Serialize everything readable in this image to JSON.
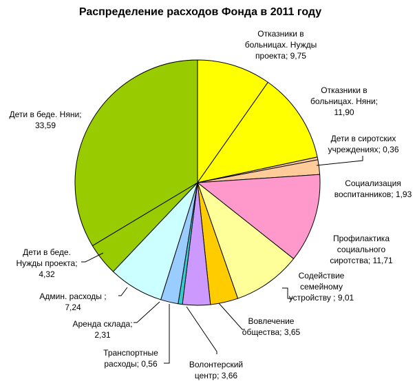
{
  "chart_data": {
    "type": "pie",
    "title": "Распределение расходов Фонда в 2011 году",
    "start_angle_deg": 90,
    "direction": "clockwise",
    "slices": [
      {
        "label_lines": [
          "Отказники в",
          "больницах. Нужды",
          "проекта; 9,75"
        ],
        "value": 9.75,
        "color": "#FFFF00"
      },
      {
        "label_lines": [
          "Отказники в",
          "больницах. Няни;",
          "11,90"
        ],
        "value": 11.9,
        "color": "#FFFF00"
      },
      {
        "label_lines": [
          "Дети в сиротских",
          "учреждениях; 0,36"
        ],
        "value": 0.36,
        "color": "#FFCC99"
      },
      {
        "label_lines": [
          "Социализация",
          "воспитанников; 1,93"
        ],
        "value": 1.93,
        "color": "#FFCC99"
      },
      {
        "label_lines": [
          "Профилактика",
          "социального",
          "сиротства; 11,71"
        ],
        "value": 11.71,
        "color": "#FF99CC"
      },
      {
        "label_lines": [
          "Содействие",
          "семейному",
          "устройству ; 9,01"
        ],
        "value": 9.01,
        "color": "#FFFF99"
      },
      {
        "label_lines": [
          "Вовлечение",
          "общества; 3,65"
        ],
        "value": 3.65,
        "color": "#FFCC00"
      },
      {
        "label_lines": [
          "Волонтерский",
          "центр; 3,66"
        ],
        "value": 3.66,
        "color": "#CC99FF"
      },
      {
        "label_lines": [
          "Транспортные",
          "расходы; 0,56"
        ],
        "value": 0.56,
        "color": "#33CCCC"
      },
      {
        "label_lines": [
          "Аренда склада;",
          "2,31"
        ],
        "value": 2.31,
        "color": "#99CCFF"
      },
      {
        "label_lines": [
          "Админ. расходы ;",
          "7,24"
        ],
        "value": 7.24,
        "color": "#CCFFFF"
      },
      {
        "label_lines": [
          "Дети в беде.",
          "Нужды проекта;",
          "4,32"
        ],
        "value": 4.32,
        "color": "#99CC00"
      },
      {
        "label_lines": [
          "Дети в беде. Няни;",
          "33,59"
        ],
        "value": 33.59,
        "color": "#99CC00"
      }
    ]
  }
}
